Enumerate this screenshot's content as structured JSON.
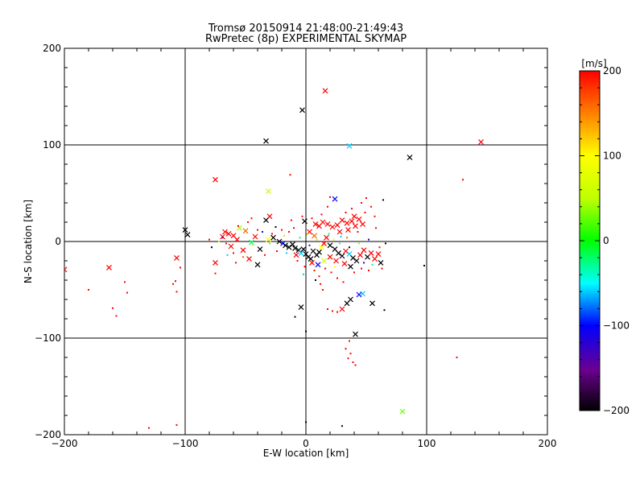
{
  "chart_data": {
    "type": "scatter",
    "title_line1": "Tromsø 20150914 21:48:00-21:49:43",
    "title_line2": "RwPretec (8p) EXPERIMENTAL SKYMAP",
    "xlabel": "E-W location [km]",
    "ylabel": "N-S location [km]",
    "xlim": [
      -200,
      200
    ],
    "ylim": [
      -200,
      200
    ],
    "xticks": [
      -200,
      -100,
      0,
      100,
      200
    ],
    "yticks": [
      -200,
      -100,
      0,
      100,
      200
    ],
    "gridlines_x": [
      -100,
      0,
      100
    ],
    "gridlines_y": [
      -100,
      0,
      100
    ],
    "colorbar": {
      "label": "[m/s]",
      "min": -200,
      "max": 200,
      "ticks": [
        -200,
        -100,
        0,
        100,
        200
      ]
    },
    "points": [
      {
        "x": 16,
        "y": 156,
        "v": 200,
        "m": "x"
      },
      {
        "x": -3,
        "y": 136,
        "v": -200,
        "m": "x"
      },
      {
        "x": -33,
        "y": 104,
        "v": -200,
        "m": "x"
      },
      {
        "x": 36,
        "y": 99,
        "v": -60,
        "m": "x"
      },
      {
        "x": 86,
        "y": 87,
        "v": -200,
        "m": "x"
      },
      {
        "x": 145,
        "y": 103,
        "v": 200,
        "m": "x"
      },
      {
        "x": 130,
        "y": 64,
        "v": 200,
        "m": "dot"
      },
      {
        "x": -75,
        "y": 64,
        "v": 200,
        "m": "x"
      },
      {
        "x": -13,
        "y": 69,
        "v": 200,
        "m": "dot"
      },
      {
        "x": -31,
        "y": 52,
        "v": 60,
        "m": "x"
      },
      {
        "x": 24,
        "y": 44,
        "v": -100,
        "m": "x"
      },
      {
        "x": 50,
        "y": 45,
        "v": 200,
        "m": "dot"
      },
      {
        "x": 64,
        "y": 43,
        "v": -200,
        "m": "dot"
      },
      {
        "x": -200,
        "y": -29,
        "v": 200,
        "m": "x"
      },
      {
        "x": -163,
        "y": -27,
        "v": 200,
        "m": "x"
      },
      {
        "x": -180,
        "y": -50,
        "v": 200,
        "m": "dot"
      },
      {
        "x": -150,
        "y": -42,
        "v": 200,
        "m": "dot"
      },
      {
        "x": -148,
        "y": -53,
        "v": 200,
        "m": "dot"
      },
      {
        "x": -160,
        "y": -69,
        "v": 200,
        "m": "dot"
      },
      {
        "x": -157,
        "y": -77,
        "v": 200,
        "m": "dot"
      },
      {
        "x": -107,
        "y": -17,
        "v": 200,
        "m": "x"
      },
      {
        "x": -104,
        "y": -27,
        "v": 200,
        "m": "dot"
      },
      {
        "x": -108,
        "y": -41,
        "v": 200,
        "m": "dot"
      },
      {
        "x": -110,
        "y": -44,
        "v": 200,
        "m": "dot"
      },
      {
        "x": -107,
        "y": -52,
        "v": 200,
        "m": "dot"
      },
      {
        "x": -100,
        "y": 12,
        "v": -200,
        "m": "x"
      },
      {
        "x": -98,
        "y": 7,
        "v": -200,
        "m": "x"
      },
      {
        "x": -75,
        "y": -22,
        "v": 200,
        "m": "x"
      },
      {
        "x": -69,
        "y": 5,
        "v": 200,
        "m": "x"
      },
      {
        "x": -64,
        "y": 8,
        "v": 200,
        "m": "x"
      },
      {
        "x": -60,
        "y": 6,
        "v": 200,
        "m": "x"
      },
      {
        "x": -67,
        "y": 10,
        "v": 200,
        "m": "x"
      },
      {
        "x": -57,
        "y": 2,
        "v": 200,
        "m": "x"
      },
      {
        "x": -62,
        "y": -5,
        "v": 200,
        "m": "x"
      },
      {
        "x": -52,
        "y": -9,
        "v": 200,
        "m": "x"
      },
      {
        "x": -47,
        "y": -18,
        "v": 200,
        "m": "x"
      },
      {
        "x": -42,
        "y": 5,
        "v": 200,
        "m": "x"
      },
      {
        "x": -50,
        "y": 11,
        "v": 160,
        "m": "x"
      },
      {
        "x": -55,
        "y": 14,
        "v": 40,
        "m": "x"
      },
      {
        "x": -45,
        "y": -1,
        "v": -20,
        "m": "x"
      },
      {
        "x": -38,
        "y": -8,
        "v": -200,
        "m": "x"
      },
      {
        "x": -40,
        "y": -24,
        "v": -200,
        "m": "x"
      },
      {
        "x": -30,
        "y": 26,
        "v": 200,
        "m": "x"
      },
      {
        "x": -33,
        "y": 22,
        "v": -200,
        "m": "x"
      },
      {
        "x": -25,
        "y": 15,
        "v": -200,
        "m": "dot"
      },
      {
        "x": -27,
        "y": 4,
        "v": -200,
        "m": "x"
      },
      {
        "x": -31,
        "y": 2,
        "v": 100,
        "m": "x"
      },
      {
        "x": -22,
        "y": 0,
        "v": -200,
        "m": "x"
      },
      {
        "x": -19,
        "y": -2,
        "v": -100,
        "m": "x"
      },
      {
        "x": -17,
        "y": -4,
        "v": -200,
        "m": "x"
      },
      {
        "x": -14,
        "y": -6,
        "v": -200,
        "m": "x"
      },
      {
        "x": -11,
        "y": -3,
        "v": -200,
        "m": "x"
      },
      {
        "x": -9,
        "y": -7,
        "v": -200,
        "m": "x"
      },
      {
        "x": -6,
        "y": -9,
        "v": -200,
        "m": "x"
      },
      {
        "x": -4,
        "y": -12,
        "v": -60,
        "m": "x"
      },
      {
        "x": -2,
        "y": -8,
        "v": -200,
        "m": "x"
      },
      {
        "x": 0,
        "y": -13,
        "v": -200,
        "m": "x"
      },
      {
        "x": 2,
        "y": -16,
        "v": -200,
        "m": "x"
      },
      {
        "x": 4,
        "y": -18,
        "v": -200,
        "m": "x"
      },
      {
        "x": 6,
        "y": -10,
        "v": -200,
        "m": "x"
      },
      {
        "x": 9,
        "y": -14,
        "v": -200,
        "m": "x"
      },
      {
        "x": 11,
        "y": -11,
        "v": -200,
        "m": "x"
      },
      {
        "x": 13,
        "y": -6,
        "v": 100,
        "m": "x"
      },
      {
        "x": 15,
        "y": -2,
        "v": 200,
        "m": "x"
      },
      {
        "x": 17,
        "y": 4,
        "v": 200,
        "m": "x"
      },
      {
        "x": 8,
        "y": 18,
        "v": 200,
        "m": "x"
      },
      {
        "x": 11,
        "y": 16,
        "v": 200,
        "m": "x"
      },
      {
        "x": 14,
        "y": 20,
        "v": 200,
        "m": "x"
      },
      {
        "x": 18,
        "y": 18,
        "v": 200,
        "m": "x"
      },
      {
        "x": 22,
        "y": 15,
        "v": 200,
        "m": "x"
      },
      {
        "x": 26,
        "y": 17,
        "v": 200,
        "m": "x"
      },
      {
        "x": 30,
        "y": 22,
        "v": 200,
        "m": "x"
      },
      {
        "x": 34,
        "y": 19,
        "v": 200,
        "m": "x"
      },
      {
        "x": 38,
        "y": 21,
        "v": 200,
        "m": "x"
      },
      {
        "x": 41,
        "y": 16,
        "v": 200,
        "m": "x"
      },
      {
        "x": 44,
        "y": 23,
        "v": 200,
        "m": "x"
      },
      {
        "x": 47,
        "y": 18,
        "v": 200,
        "m": "x"
      },
      {
        "x": 40,
        "y": 26,
        "v": 200,
        "m": "x"
      },
      {
        "x": 35,
        "y": 12,
        "v": 200,
        "m": "x"
      },
      {
        "x": 28,
        "y": 10,
        "v": 200,
        "m": "x"
      },
      {
        "x": -1,
        "y": 21,
        "v": -200,
        "m": "x"
      },
      {
        "x": 3,
        "y": 10,
        "v": 200,
        "m": "x"
      },
      {
        "x": 7,
        "y": 6,
        "v": 160,
        "m": "x"
      },
      {
        "x": 20,
        "y": -4,
        "v": -200,
        "m": "x"
      },
      {
        "x": 24,
        "y": -8,
        "v": -200,
        "m": "x"
      },
      {
        "x": 27,
        "y": -12,
        "v": -200,
        "m": "x"
      },
      {
        "x": 30,
        "y": -15,
        "v": -200,
        "m": "x"
      },
      {
        "x": 33,
        "y": -10,
        "v": 200,
        "m": "x"
      },
      {
        "x": 36,
        "y": -13,
        "v": -60,
        "m": "x"
      },
      {
        "x": 39,
        "y": -17,
        "v": -200,
        "m": "x"
      },
      {
        "x": 42,
        "y": -20,
        "v": -200,
        "m": "x"
      },
      {
        "x": 45,
        "y": -14,
        "v": 200,
        "m": "x"
      },
      {
        "x": 48,
        "y": -9,
        "v": 200,
        "m": "x"
      },
      {
        "x": 51,
        "y": -16,
        "v": -200,
        "m": "x"
      },
      {
        "x": 54,
        "y": -12,
        "v": 200,
        "m": "x"
      },
      {
        "x": 57,
        "y": -18,
        "v": 200,
        "m": "x"
      },
      {
        "x": 60,
        "y": -13,
        "v": 200,
        "m": "x"
      },
      {
        "x": 62,
        "y": -22,
        "v": -200,
        "m": "x"
      },
      {
        "x": 37,
        "y": -26,
        "v": -200,
        "m": "x"
      },
      {
        "x": 32,
        "y": -23,
        "v": 200,
        "m": "x"
      },
      {
        "x": 25,
        "y": -20,
        "v": 200,
        "m": "x"
      },
      {
        "x": 20,
        "y": -16,
        "v": 200,
        "m": "x"
      },
      {
        "x": 15,
        "y": -20,
        "v": 60,
        "m": "x"
      },
      {
        "x": 10,
        "y": -24,
        "v": -100,
        "m": "x"
      },
      {
        "x": 5,
        "y": -22,
        "v": 200,
        "m": "x"
      },
      {
        "x": -8,
        "y": -14,
        "v": 200,
        "m": "x"
      },
      {
        "x": 47,
        "y": -54,
        "v": -60,
        "m": "x"
      },
      {
        "x": 44,
        "y": -55,
        "v": -100,
        "m": "x"
      },
      {
        "x": 37,
        "y": -60,
        "v": -200,
        "m": "x"
      },
      {
        "x": 55,
        "y": -64,
        "v": -200,
        "m": "x"
      },
      {
        "x": 34,
        "y": -64,
        "v": -200,
        "m": "x"
      },
      {
        "x": 30,
        "y": -70,
        "v": 200,
        "m": "x"
      },
      {
        "x": 26,
        "y": -73,
        "v": 200,
        "m": "dot"
      },
      {
        "x": 22,
        "y": -72,
        "v": 200,
        "m": "dot"
      },
      {
        "x": 18,
        "y": -70,
        "v": 200,
        "m": "dot"
      },
      {
        "x": 14,
        "y": -50,
        "v": 200,
        "m": "dot"
      },
      {
        "x": 12,
        "y": -44,
        "v": 200,
        "m": "dot"
      },
      {
        "x": -4,
        "y": -68,
        "v": -200,
        "m": "x"
      },
      {
        "x": -9,
        "y": -78,
        "v": -200,
        "m": "dot"
      },
      {
        "x": 65,
        "y": -71,
        "v": -200,
        "m": "dot"
      },
      {
        "x": 41,
        "y": -96,
        "v": -200,
        "m": "x"
      },
      {
        "x": 36,
        "y": -103,
        "v": 200,
        "m": "dot"
      },
      {
        "x": 33,
        "y": -111,
        "v": 200,
        "m": "dot"
      },
      {
        "x": 37,
        "y": -116,
        "v": 200,
        "m": "dot"
      },
      {
        "x": 35,
        "y": -121,
        "v": 200,
        "m": "dot"
      },
      {
        "x": 39,
        "y": -125,
        "v": 200,
        "m": "dot"
      },
      {
        "x": 41,
        "y": -128,
        "v": 200,
        "m": "dot"
      },
      {
        "x": 0,
        "y": -93,
        "v": -200,
        "m": "dot"
      },
      {
        "x": 125,
        "y": -120,
        "v": 200,
        "m": "dot"
      },
      {
        "x": 80,
        "y": -176,
        "v": 30,
        "m": "x"
      },
      {
        "x": 0,
        "y": -187,
        "v": -200,
        "m": "dot"
      },
      {
        "x": 30,
        "y": -191,
        "v": -200,
        "m": "dot"
      },
      {
        "x": -107,
        "y": -190,
        "v": 200,
        "m": "dot"
      },
      {
        "x": -130,
        "y": -193,
        "v": 200,
        "m": "dot"
      },
      {
        "x": 98,
        "y": -25,
        "v": -200,
        "m": "dot"
      },
      {
        "x": -75,
        "y": -33,
        "v": 200,
        "m": "dot"
      },
      {
        "x": -78,
        "y": -6,
        "v": -200,
        "m": "dot"
      },
      {
        "x": -80,
        "y": 2,
        "v": 200,
        "m": "dot"
      },
      {
        "x": -72,
        "y": 0,
        "v": 60,
        "m": "dot"
      },
      {
        "x": -66,
        "y": -2,
        "v": 200,
        "m": "dot"
      },
      {
        "x": -60,
        "y": -12,
        "v": 200,
        "m": "dot"
      },
      {
        "x": -56,
        "y": 16,
        "v": 200,
        "m": "dot"
      },
      {
        "x": -48,
        "y": 20,
        "v": 200,
        "m": "dot"
      },
      {
        "x": -44,
        "y": -4,
        "v": 100,
        "m": "dot"
      },
      {
        "x": -40,
        "y": 12,
        "v": 200,
        "m": "dot"
      },
      {
        "x": -36,
        "y": 10,
        "v": -100,
        "m": "dot"
      },
      {
        "x": -34,
        "y": -14,
        "v": 200,
        "m": "dot"
      },
      {
        "x": -30,
        "y": -2,
        "v": 20,
        "m": "dot"
      },
      {
        "x": -28,
        "y": 8,
        "v": 200,
        "m": "dot"
      },
      {
        "x": -24,
        "y": -10,
        "v": 200,
        "m": "dot"
      },
      {
        "x": -20,
        "y": 12,
        "v": 200,
        "m": "dot"
      },
      {
        "x": -18,
        "y": 6,
        "v": 120,
        "m": "dot"
      },
      {
        "x": -16,
        "y": -12,
        "v": -60,
        "m": "dot"
      },
      {
        "x": -14,
        "y": 10,
        "v": 200,
        "m": "dot"
      },
      {
        "x": -12,
        "y": 22,
        "v": 200,
        "m": "dot"
      },
      {
        "x": -10,
        "y": 14,
        "v": 200,
        "m": "dot"
      },
      {
        "x": -7,
        "y": -20,
        "v": 200,
        "m": "dot"
      },
      {
        "x": -5,
        "y": 4,
        "v": -20,
        "m": "dot"
      },
      {
        "x": -3,
        "y": 26,
        "v": 200,
        "m": "dot"
      },
      {
        "x": -1,
        "y": -26,
        "v": 200,
        "m": "dot"
      },
      {
        "x": 1,
        "y": 7,
        "v": 80,
        "m": "dot"
      },
      {
        "x": 3,
        "y": -4,
        "v": -140,
        "m": "dot"
      },
      {
        "x": 5,
        "y": 24,
        "v": 200,
        "m": "dot"
      },
      {
        "x": 7,
        "y": -30,
        "v": 200,
        "m": "dot"
      },
      {
        "x": 9,
        "y": 2,
        "v": 40,
        "m": "dot"
      },
      {
        "x": 11,
        "y": -36,
        "v": 200,
        "m": "dot"
      },
      {
        "x": 13,
        "y": 28,
        "v": 200,
        "m": "dot"
      },
      {
        "x": 16,
        "y": -28,
        "v": 200,
        "m": "dot"
      },
      {
        "x": 19,
        "y": 8,
        "v": -20,
        "m": "dot"
      },
      {
        "x": 21,
        "y": -32,
        "v": 200,
        "m": "dot"
      },
      {
        "x": 23,
        "y": 2,
        "v": 90,
        "m": "dot"
      },
      {
        "x": 26,
        "y": -38,
        "v": 200,
        "m": "dot"
      },
      {
        "x": 29,
        "y": 5,
        "v": -60,
        "m": "dot"
      },
      {
        "x": 31,
        "y": -42,
        "v": 200,
        "m": "dot"
      },
      {
        "x": 33,
        "y": 30,
        "v": 200,
        "m": "dot"
      },
      {
        "x": 36,
        "y": -6,
        "v": -200,
        "m": "dot"
      },
      {
        "x": 38,
        "y": 34,
        "v": 200,
        "m": "dot"
      },
      {
        "x": 40,
        "y": -32,
        "v": 200,
        "m": "dot"
      },
      {
        "x": 43,
        "y": 10,
        "v": 200,
        "m": "dot"
      },
      {
        "x": 46,
        "y": -28,
        "v": 200,
        "m": "dot"
      },
      {
        "x": 49,
        "y": 30,
        "v": 200,
        "m": "dot"
      },
      {
        "x": 52,
        "y": 2,
        "v": -100,
        "m": "dot"
      },
      {
        "x": 55,
        "y": -24,
        "v": -20,
        "m": "dot"
      },
      {
        "x": 58,
        "y": 14,
        "v": 200,
        "m": "dot"
      },
      {
        "x": 61,
        "y": -6,
        "v": 200,
        "m": "dot"
      },
      {
        "x": 63,
        "y": -28,
        "v": 200,
        "m": "dot"
      },
      {
        "x": 66,
        "y": -2,
        "v": -200,
        "m": "dot"
      },
      {
        "x": 54,
        "y": 36,
        "v": 200,
        "m": "dot"
      },
      {
        "x": 57,
        "y": 26,
        "v": 200,
        "m": "dot"
      },
      {
        "x": 46,
        "y": 40,
        "v": 200,
        "m": "dot"
      },
      {
        "x": 18,
        "y": 36,
        "v": 200,
        "m": "dot"
      },
      {
        "x": 20,
        "y": 46,
        "v": 200,
        "m": "dot"
      },
      {
        "x": -65,
        "y": -14,
        "v": -60,
        "m": "dot"
      },
      {
        "x": -58,
        "y": -22,
        "v": 200,
        "m": "dot"
      },
      {
        "x": -69,
        "y": 4,
        "v": -140,
        "m": "dot"
      },
      {
        "x": -45,
        "y": 24,
        "v": 200,
        "m": "dot"
      },
      {
        "x": -52,
        "y": -16,
        "v": 160,
        "m": "dot"
      },
      {
        "x": 28,
        "y": -2,
        "v": -40,
        "m": "dot"
      },
      {
        "x": 34,
        "y": 4,
        "v": 160,
        "m": "dot"
      },
      {
        "x": 44,
        "y": -2,
        "v": 40,
        "m": "dot"
      },
      {
        "x": 48,
        "y": -22,
        "v": -120,
        "m": "dot"
      },
      {
        "x": 52,
        "y": -30,
        "v": 200,
        "m": "dot"
      },
      {
        "x": 8,
        "y": -40,
        "v": -200,
        "m": "dot"
      },
      {
        "x": 24,
        "y": -26,
        "v": 100,
        "m": "dot"
      },
      {
        "x": -2,
        "y": -34,
        "v": -60,
        "m": "dot"
      }
    ]
  }
}
